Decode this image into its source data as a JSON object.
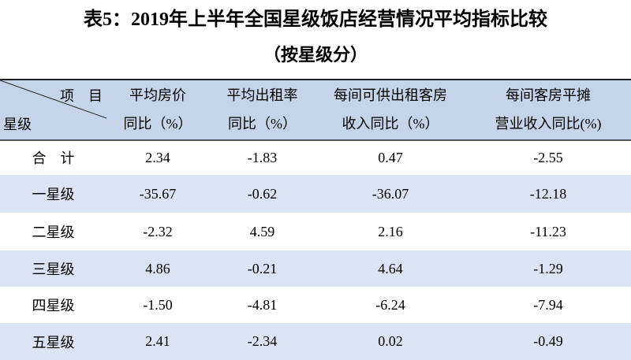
{
  "title": "表5：2019年上半年全国星级饭店经营情况平均指标比较",
  "subtitle": "（按星级分）",
  "table": {
    "corner": {
      "top": "项　目",
      "bottom": "星级"
    },
    "header": [
      [
        "平均房价",
        "同比（%）"
      ],
      [
        "平均出租率",
        "同比（%）"
      ],
      [
        "每间可供出租客房",
        "收入同比（%）"
      ],
      [
        "每间客房平摊",
        "营业收入同比(%)"
      ]
    ],
    "rows": [
      [
        "合　计",
        "2.34",
        "-1.83",
        "0.47",
        "-2.55"
      ],
      [
        "一星级",
        "-35.67",
        "-0.62",
        "-36.07",
        "-12.18"
      ],
      [
        "二星级",
        "-2.32",
        "4.59",
        "2.16",
        "-11.23"
      ],
      [
        "三星级",
        "4.86",
        "-0.21",
        "4.64",
        "-1.29"
      ],
      [
        "四星级",
        "-1.50",
        "-4.81",
        "-6.24",
        "-7.94"
      ],
      [
        "五星级",
        "2.41",
        "-2.34",
        "0.02",
        "-0.49"
      ]
    ]
  }
}
